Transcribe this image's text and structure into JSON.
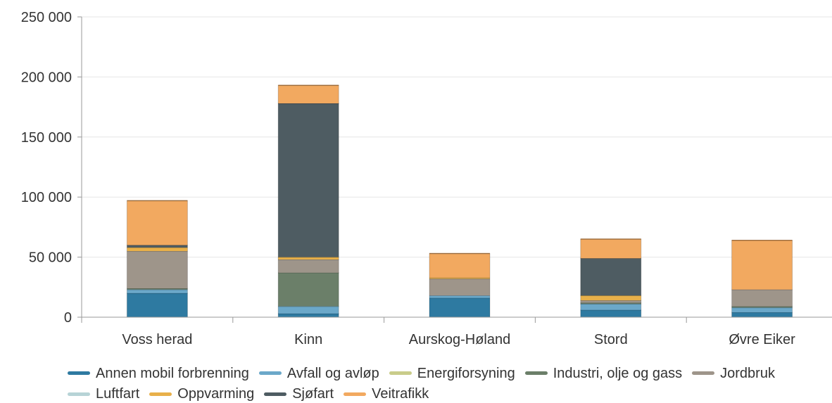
{
  "chart_data": {
    "type": "bar",
    "stacked": true,
    "categories": [
      "Voss herad",
      "Kinn",
      "Aurskog-Høland",
      "Stord",
      "Øvre Eiker"
    ],
    "ylim": [
      0,
      250000
    ],
    "yticks": [
      0,
      50000,
      100000,
      150000,
      200000,
      250000
    ],
    "ytick_labels": [
      "0",
      "50 000",
      "100 000",
      "150 000",
      "200 000",
      "250 000"
    ],
    "grid": true,
    "legend_position": "bottom",
    "series": [
      {
        "name": "Annen mobil forbrenning",
        "color": "#2e7aa1",
        "values": [
          20000,
          3000,
          16000,
          6000,
          4000
        ]
      },
      {
        "name": "Avfall og avløp",
        "color": "#6ba8c9",
        "values": [
          3000,
          6000,
          2000,
          5000,
          4000
        ]
      },
      {
        "name": "Energiforsyning",
        "color": "#c9cc8a",
        "values": [
          0,
          0,
          0,
          0,
          0
        ]
      },
      {
        "name": "Industri, olje og gass",
        "color": "#6b7f69",
        "values": [
          1000,
          28000,
          0,
          1000,
          1000
        ]
      },
      {
        "name": "Jordbruk",
        "color": "#9e958a",
        "values": [
          31000,
          11000,
          14000,
          2000,
          14000
        ]
      },
      {
        "name": "Luftfart",
        "color": "#b7d3d6",
        "values": [
          0,
          0,
          0,
          0,
          0
        ]
      },
      {
        "name": "Oppvarming",
        "color": "#e8b04a",
        "values": [
          3000,
          2000,
          1000,
          4000,
          0
        ]
      },
      {
        "name": "Sjøfart",
        "color": "#4e5c62",
        "values": [
          2000,
          128000,
          0,
          31000,
          0
        ]
      },
      {
        "name": "Veitrafikk",
        "color": "#f2a960",
        "values": [
          37000,
          15000,
          20000,
          16000,
          41000
        ]
      }
    ]
  }
}
